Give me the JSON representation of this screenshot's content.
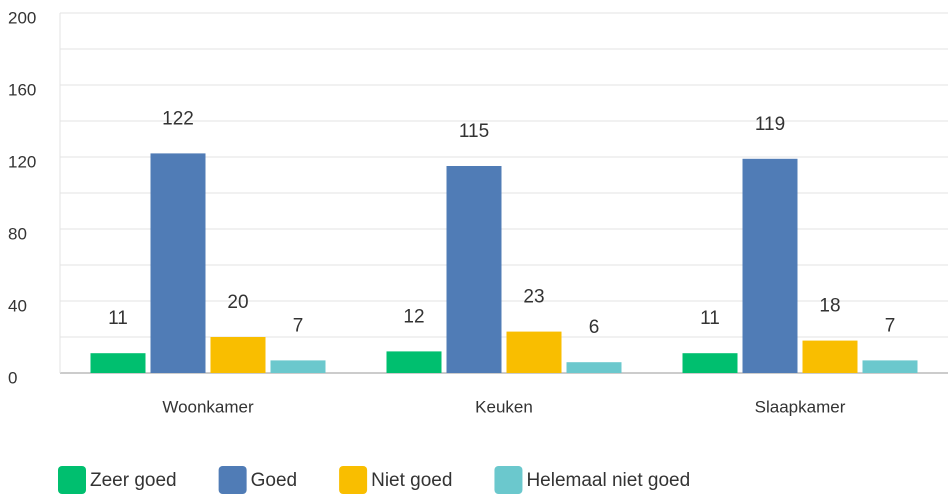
{
  "chart_data": {
    "type": "bar",
    "categories": [
      "Woonkamer",
      "Keuken",
      "Slaapkamer"
    ],
    "series": [
      {
        "name": "Zeer goed",
        "color": "#00bf6f",
        "values": [
          11,
          12,
          11
        ]
      },
      {
        "name": "Goed",
        "color": "#507cb6",
        "values": [
          122,
          115,
          119
        ]
      },
      {
        "name": "Niet goed",
        "color": "#f9be00",
        "values": [
          20,
          23,
          18
        ]
      },
      {
        "name": "Helemaal niet goed",
        "color": "#6bc8cd",
        "values": [
          7,
          6,
          7
        ]
      }
    ],
    "ylim": [
      0,
      200
    ],
    "yticks": [
      0,
      40,
      80,
      120,
      160,
      200
    ],
    "minor_yticks": [
      20,
      60,
      100,
      140,
      180
    ],
    "grid": true
  }
}
